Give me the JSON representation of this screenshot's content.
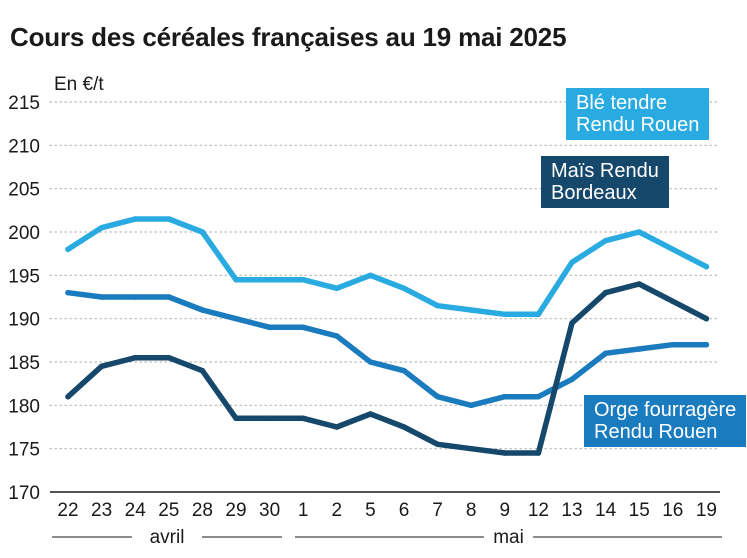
{
  "title": "Cours des céréales françaises au 19 mai 2025",
  "chart_data": {
    "type": "line",
    "ylabel": "En €/t",
    "ylim": [
      170,
      215
    ],
    "yticks": [
      170,
      175,
      180,
      185,
      190,
      195,
      200,
      205,
      210,
      215
    ],
    "grid": true,
    "categories": [
      "22",
      "23",
      "24",
      "25",
      "28",
      "29",
      "30",
      "1",
      "2",
      "5",
      "6",
      "7",
      "8",
      "9",
      "12",
      "13",
      "14",
      "15",
      "16",
      "19"
    ],
    "month_groups": [
      {
        "label": "avril",
        "from": 0,
        "to": 6
      },
      {
        "label": "mai",
        "from": 7,
        "to": 19
      }
    ],
    "series": [
      {
        "name": "Blé tendre Rendu Rouen",
        "label_lines": [
          "Blé tendre",
          "Rendu Rouen"
        ],
        "color": "#29abe2",
        "values": [
          198,
          200.5,
          201.5,
          201.5,
          200,
          194.5,
          194.5,
          194.5,
          193.5,
          195,
          193.5,
          191.5,
          191,
          190.5,
          190.5,
          196.5,
          199,
          200,
          198,
          196
        ]
      },
      {
        "name": "Orge fourragère Rendu Rouen",
        "label_lines": [
          "Orge fourragère",
          "Rendu Rouen"
        ],
        "color": "#1a7bbf",
        "values": [
          193,
          192.5,
          192.5,
          192.5,
          191,
          190,
          189,
          189,
          188,
          185,
          184,
          181,
          180,
          181,
          181,
          183,
          186,
          186.5,
          187,
          187
        ]
      },
      {
        "name": "Maïs Rendu Bordeaux",
        "label_lines": [
          "Maïs Rendu",
          "Bordeaux"
        ],
        "color": "#15486b",
        "values": [
          181,
          184.5,
          185.5,
          185.5,
          184,
          178.5,
          178.5,
          178.5,
          177.5,
          179,
          177.5,
          175.5,
          175,
          174.5,
          174.5,
          189.5,
          193,
          194,
          192,
          190
        ]
      }
    ],
    "labels": [
      {
        "series": 0,
        "color": "#29abe2"
      },
      {
        "series": 2,
        "color": "#15486b"
      },
      {
        "series": 1,
        "color": "#1a7bbf"
      }
    ]
  }
}
